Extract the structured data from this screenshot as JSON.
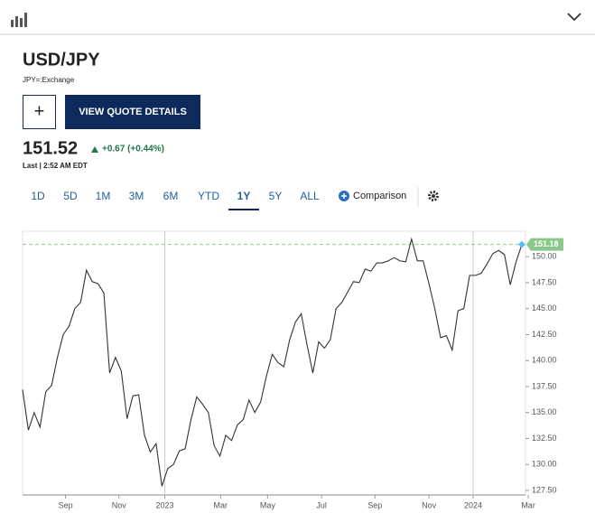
{
  "header": {
    "title": "USD/JPY",
    "exchange": "JPY=:Exchange"
  },
  "actions": {
    "add": "+",
    "details": "VIEW QUOTE DETAILS"
  },
  "quote": {
    "price": "151.52",
    "change": "+0.67 (+0.44%)",
    "time": "Last | 2:52 AM EDT"
  },
  "ranges": [
    "1D",
    "5D",
    "1M",
    "3M",
    "6M",
    "YTD",
    "1Y",
    "5Y",
    "ALL"
  ],
  "selected_range": "1Y",
  "comparison": "Comparison",
  "chart_data": {
    "type": "line",
    "color": "#333333",
    "values": [
      137.2,
      133.3,
      135,
      133.6,
      137,
      137.6,
      140.3,
      142.5,
      143.3,
      145,
      145.6,
      148.7,
      147.6,
      147.4,
      146.5,
      138.8,
      140.3,
      139,
      134.4,
      136.6,
      136.7,
      132.8,
      131.2,
      132,
      127.9,
      129.6,
      130,
      131.3,
      131.5,
      134.3,
      136.5,
      135.8,
      135,
      131.8,
      130.8,
      132.8,
      132.3,
      133.8,
      134.3,
      136.2,
      135,
      136,
      138.5,
      140.6,
      139.8,
      139.4,
      142,
      143.7,
      144.5,
      141.5,
      138.8,
      141.8,
      141.2,
      142,
      145,
      145.6,
      146.6,
      147.6,
      147.5,
      148.8,
      148.6,
      149.4,
      149.4,
      149.6,
      149.9,
      149.6,
      149.5,
      151.7,
      149.6,
      149.6,
      147.4,
      145,
      142.2,
      142.4,
      141,
      144.8,
      145,
      148.2,
      148.2,
      148.4,
      149.3,
      150.3,
      150.6,
      150.2,
      147.3,
      149.5,
      151.18
    ],
    "last_value": 151.18,
    "last_color": "#8cc88c",
    "ylim": [
      127.06,
      152.45
    ],
    "yticks": [
      {
        "value": 127.5,
        "label": "127.50"
      },
      {
        "value": 130,
        "label": "130.00"
      },
      {
        "value": 132.5,
        "label": "132.50"
      },
      {
        "value": 135,
        "label": "135.00"
      },
      {
        "value": 137.5,
        "label": "137.50"
      },
      {
        "value": 140,
        "label": "140.00"
      },
      {
        "value": 142.5,
        "label": "142.50"
      },
      {
        "value": 145,
        "label": "145.00"
      },
      {
        "value": 147.5,
        "label": "147.50"
      },
      {
        "value": 150,
        "label": "150.00"
      }
    ],
    "xticks": [
      {
        "value": 7.4,
        "label": "Sep"
      },
      {
        "value": 16.6,
        "label": "Nov"
      },
      {
        "value": 24.5,
        "label": "2023"
      },
      {
        "value": 34.1,
        "label": "Mar"
      },
      {
        "value": 42.2,
        "label": "May"
      },
      {
        "value": 51.5,
        "label": "Jul"
      },
      {
        "value": 60.7,
        "label": "Sep"
      },
      {
        "value": 70,
        "label": "Nov"
      },
      {
        "value": 77.6,
        "label": "2024"
      },
      {
        "value": 87.1,
        "label": "Mar"
      }
    ],
    "year_lines": [
      2,
      8
    ]
  }
}
